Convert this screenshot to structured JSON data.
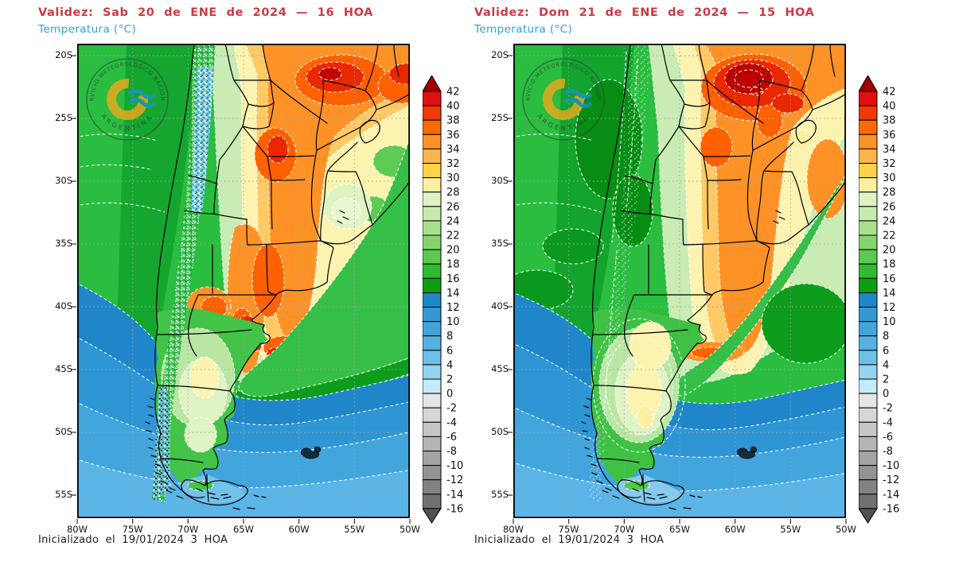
{
  "panels": [
    {
      "validity": "Validez: Sab 20 de ENE de 2024 — 16 HOA",
      "variable": "Temperatura (°C)",
      "init": "Inicializado el 19/01/2024 3 HOA"
    },
    {
      "validity": "Validez: Dom 21 de ENE de 2024 — 15 HOA",
      "variable": "Temperatura (°C)",
      "init": "Inicializado el 19/01/2024 3 HOA"
    }
  ],
  "axes": {
    "lat": [
      "20S",
      "25S",
      "30S",
      "35S",
      "40S",
      "45S",
      "50S",
      "55S"
    ],
    "lon": [
      "80W",
      "75W",
      "70W",
      "65W",
      "60W",
      "55W",
      "50W"
    ]
  },
  "colorbar": {
    "labels": [
      "42",
      "40",
      "38",
      "36",
      "34",
      "32",
      "30",
      "28",
      "26",
      "24",
      "22",
      "20",
      "18",
      "16",
      "14",
      "12",
      "10",
      "8",
      "6",
      "4",
      "2",
      "0",
      "-2",
      "-4",
      "-6",
      "-8",
      "-10",
      "-12",
      "-14",
      "-16"
    ],
    "cells": [
      "#E01010",
      "#F23900",
      "#FF6A00",
      "#FF9226",
      "#FCB54C",
      "#FFD24D",
      "#FEF0A0",
      "#DFF3C5",
      "#C6EBAD",
      "#A8E18E",
      "#85D56C",
      "#5DC94E",
      "#32BA31",
      "#0D9E14",
      "#1F86C9",
      "#3598D4",
      "#42A4DB",
      "#55B1E2",
      "#6FC0E9",
      "#95D4F1",
      "#C3EBFA",
      "#E6E6E6",
      "#D6D6D6",
      "#C6C6C6",
      "#B5B5B5",
      "#A4A4A4",
      "#939393",
      "#828282",
      "#717171"
    ],
    "arrow_top": "#A40000",
    "arrow_bottom": "#515151"
  },
  "logo": {
    "top_text": "SERVICIO METEOROLÓGICO NACIONAL",
    "bottom_text": "ARGENTINA",
    "orange": "#F6A81C",
    "blue": "#1D8FD0"
  },
  "colors": {
    "validity_red": "#CC3A45",
    "variable_cyan": "#2BA3DC",
    "axis_text": "#111111",
    "grid": "#9FA5A5",
    "frame": "#000000",
    "background": "#FFFFFF"
  }
}
